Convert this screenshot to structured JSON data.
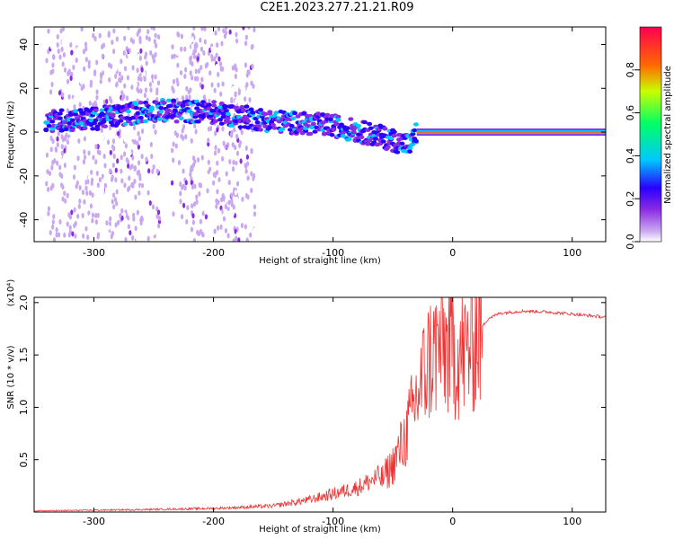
{
  "title": "C2E1.2023.277.21.21.R09",
  "chart_data": [
    {
      "type": "heatmap",
      "xlabel": "Height of straight line (km)",
      "ylabel": "Frequency (Hz)",
      "xlim": [
        -350,
        128
      ],
      "ylim": [
        -50,
        48
      ],
      "xticks": [
        -300,
        -200,
        -100,
        0,
        100
      ],
      "yticks": [
        -40,
        -20,
        0,
        20,
        40
      ],
      "colorbar": {
        "label": "Normalized spectral amplitude",
        "range": [
          0,
          1
        ],
        "ticks": [
          "0.0",
          "0.2",
          "0.4",
          "0.6",
          "0.8"
        ],
        "colors": [
          "#ffffff",
          "#c9a8f0",
          "#8a2be2",
          "#2a00ff",
          "#00c8ff",
          "#00ff66",
          "#c8ff00",
          "#ff6a00",
          "#ff0050"
        ]
      },
      "features": [
        {
          "name": "carrier",
          "x_range": [
            -30,
            128
          ],
          "freq": 0,
          "amplitude": 0.85
        },
        {
          "name": "doppler band",
          "points": [
            [
              -340,
              5
            ],
            [
              -300,
              6
            ],
            [
              -250,
              10
            ],
            [
              -200,
              9
            ],
            [
              -150,
              5
            ],
            [
              -100,
              3
            ],
            [
              -60,
              -2
            ],
            [
              -35,
              -6
            ],
            [
              -30,
              0
            ]
          ]
        },
        {
          "name": "noise stripes",
          "x_centers": [
            -330,
            -310,
            -290,
            -270,
            -255,
            -225,
            -210,
            -190,
            -175
          ],
          "half_width": 10
        }
      ]
    },
    {
      "type": "line",
      "xlabel": "Height of straight line (km)",
      "ylabel": "SNR (10 * v/v)",
      "ylabel_scale": "(x10⁴)",
      "xlim": [
        -350,
        128
      ],
      "ylim": [
        0,
        2.05
      ],
      "xticks": [
        -300,
        -200,
        -100,
        0,
        100
      ],
      "yticks": [
        "0.5",
        "1.0",
        "1.5",
        "2.0"
      ],
      "color": "#ee3333",
      "envelope": [
        [
          -350,
          0.01
        ],
        [
          -260,
          0.02
        ],
        [
          -200,
          0.03
        ],
        [
          -150,
          0.05
        ],
        [
          -120,
          0.1
        ],
        [
          -100,
          0.15
        ],
        [
          -80,
          0.2
        ],
        [
          -60,
          0.3
        ],
        [
          -50,
          0.45
        ],
        [
          -40,
          0.7
        ],
        [
          -30,
          1.1
        ],
        [
          -20,
          1.45
        ],
        [
          -10,
          1.6
        ],
        [
          0,
          1.55
        ],
        [
          10,
          1.5
        ],
        [
          20,
          1.7
        ],
        [
          30,
          1.85
        ],
        [
          40,
          1.9
        ],
        [
          60,
          1.92
        ],
        [
          80,
          1.91
        ],
        [
          100,
          1.89
        ],
        [
          128,
          1.86
        ]
      ]
    }
  ]
}
